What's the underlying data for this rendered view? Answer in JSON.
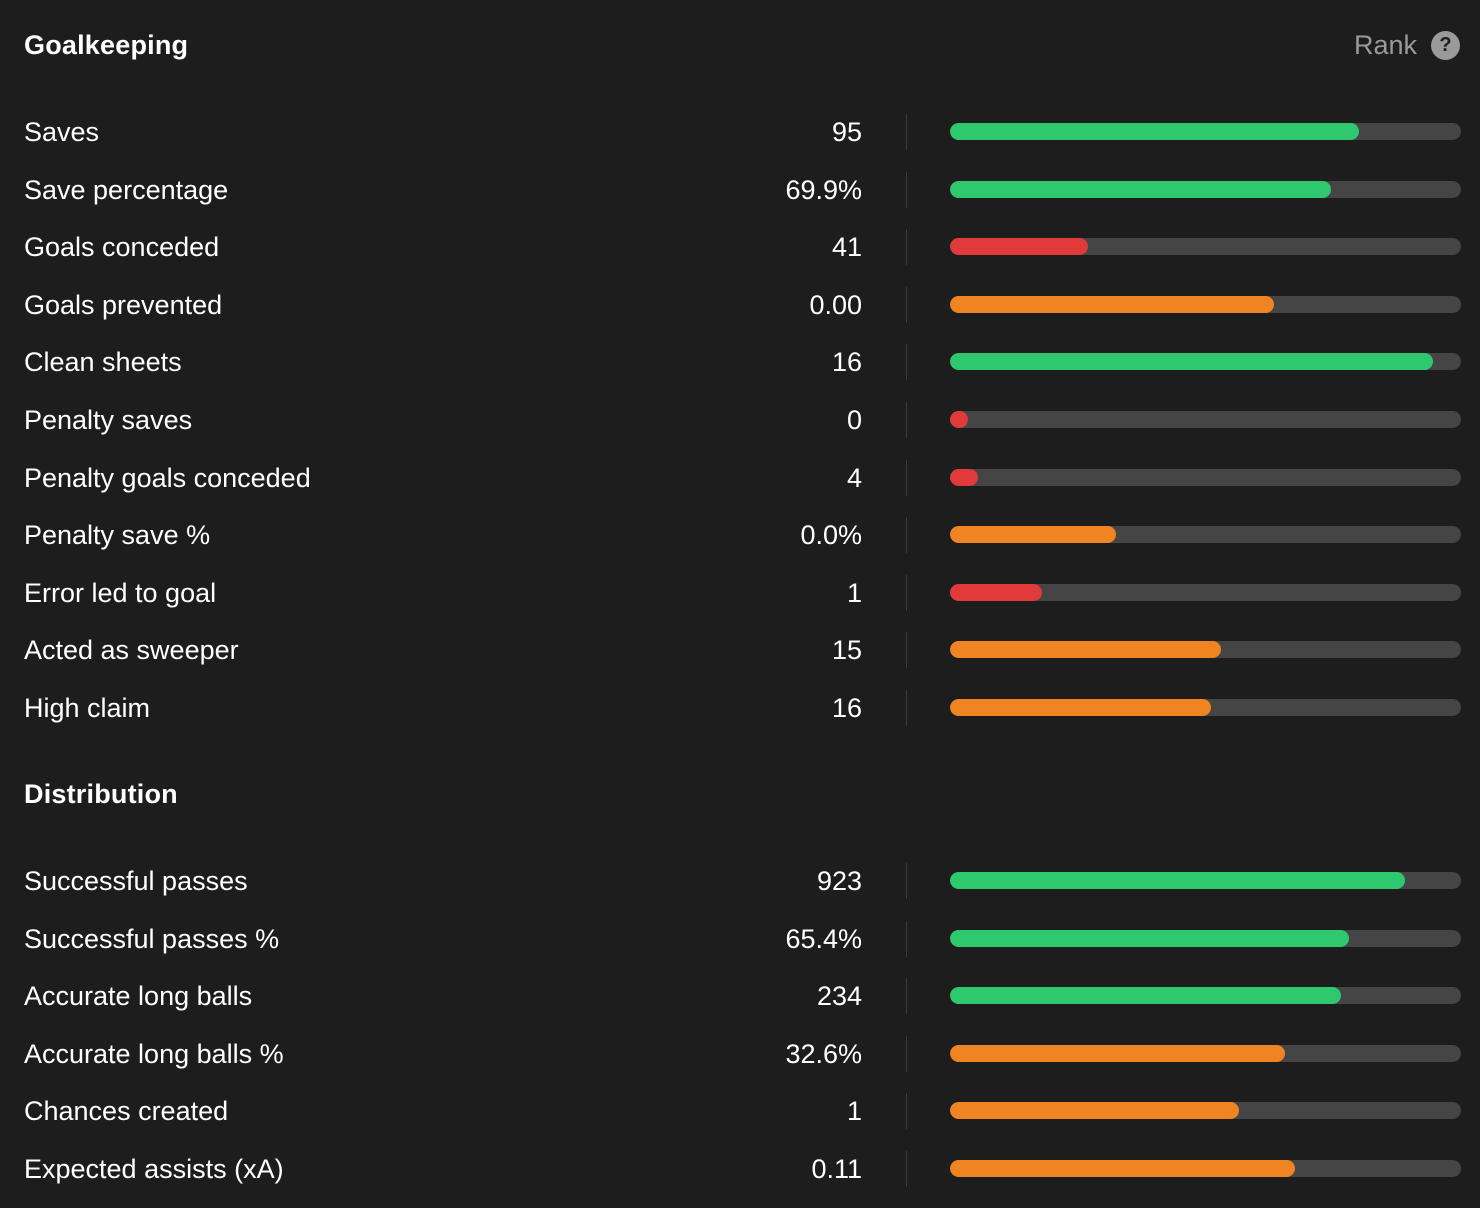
{
  "colors": {
    "high": "#2ec96e",
    "mid": "#f08422",
    "low": "#e03a3a",
    "track": "#454545",
    "background": "#1d1d1d"
  },
  "header": {
    "rank_label": "Rank",
    "help_glyph": "?"
  },
  "sections": [
    {
      "title": "Goalkeeping",
      "stats": [
        {
          "label": "Saves",
          "value": "95",
          "rank": 0.8,
          "level": "high"
        },
        {
          "label": "Save percentage",
          "value": "69.9%",
          "rank": 0.745,
          "level": "high"
        },
        {
          "label": "Goals conceded",
          "value": "41",
          "rank": 0.27,
          "level": "low"
        },
        {
          "label": "Goals prevented",
          "value": "0.00",
          "rank": 0.635,
          "level": "mid"
        },
        {
          "label": "Clean sheets",
          "value": "16",
          "rank": 0.945,
          "level": "high"
        },
        {
          "label": "Penalty saves",
          "value": "0",
          "rank": 0.035,
          "level": "low"
        },
        {
          "label": "Penalty goals conceded",
          "value": "4",
          "rank": 0.055,
          "level": "low"
        },
        {
          "label": "Penalty save %",
          "value": "0.0%",
          "rank": 0.325,
          "level": "mid"
        },
        {
          "label": "Error led to goal",
          "value": "1",
          "rank": 0.18,
          "level": "low"
        },
        {
          "label": "Acted as sweeper",
          "value": "15",
          "rank": 0.53,
          "level": "mid"
        },
        {
          "label": "High claim",
          "value": "16",
          "rank": 0.51,
          "level": "mid"
        }
      ]
    },
    {
      "title": "Distribution",
      "stats": [
        {
          "label": "Successful passes",
          "value": "923",
          "rank": 0.89,
          "level": "high"
        },
        {
          "label": "Successful passes %",
          "value": "65.4%",
          "rank": 0.78,
          "level": "high"
        },
        {
          "label": "Accurate long balls",
          "value": "234",
          "rank": 0.765,
          "level": "high"
        },
        {
          "label": "Accurate long balls %",
          "value": "32.6%",
          "rank": 0.655,
          "level": "mid"
        },
        {
          "label": "Chances created",
          "value": "1",
          "rank": 0.565,
          "level": "mid"
        },
        {
          "label": "Expected assists (xA)",
          "value": "0.11",
          "rank": 0.675,
          "level": "mid"
        }
      ]
    }
  ]
}
